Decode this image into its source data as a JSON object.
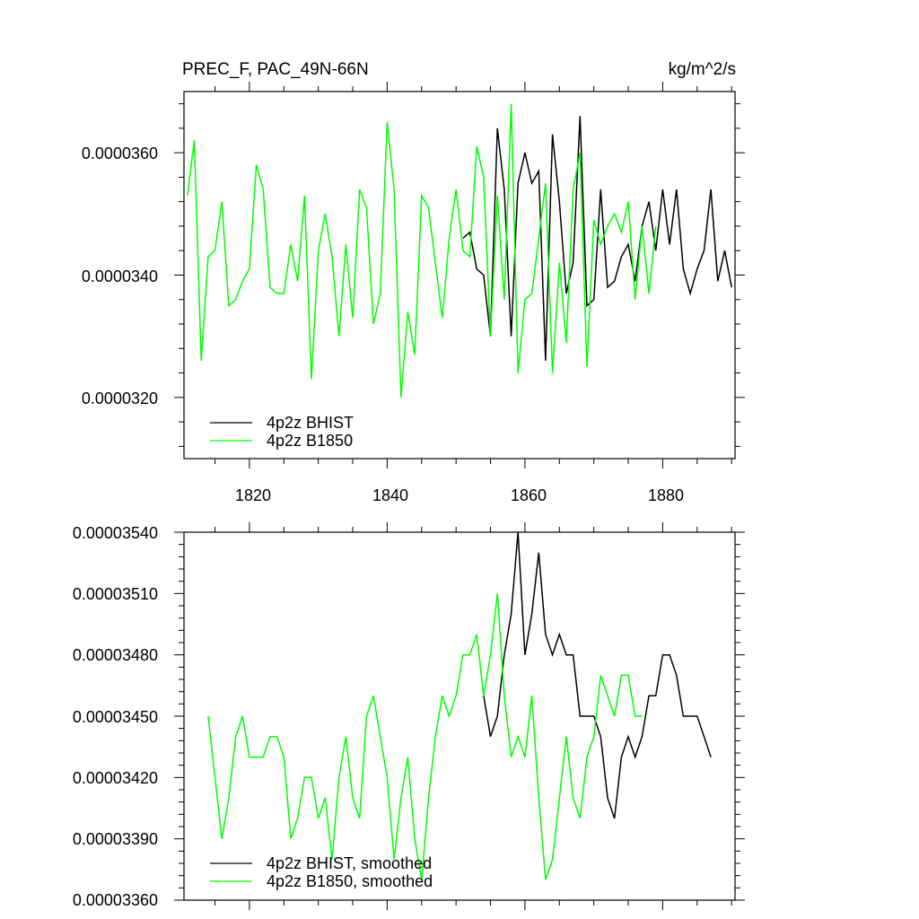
{
  "colors": {
    "bhist": "#000000",
    "b1850": "#00ff00"
  },
  "chart_data": [
    {
      "type": "line",
      "title": "PREC_F, PAC_49N-66N",
      "units": "kg/m^2/s",
      "xlim": [
        1810.5,
        1890.5
      ],
      "ylim": [
        3.1e-05,
        3.7e-05
      ],
      "xticks": [
        1820,
        1840,
        1860,
        1880
      ],
      "xtick_labels": [
        "1820",
        "1840",
        "1860",
        "1880"
      ],
      "yticks": [
        3.2e-05,
        3.4e-05,
        3.6e-05
      ],
      "ytick_labels": [
        "0.0000320",
        "0.0000340",
        "0.0000360"
      ],
      "legend_position": "bottom-left",
      "series": [
        {
          "name": "4p2z BHIST",
          "color_key": "bhist",
          "x": [
            1851,
            1852,
            1853,
            1854,
            1855,
            1856,
            1857,
            1858,
            1859,
            1860,
            1861,
            1862,
            1863,
            1864,
            1865,
            1866,
            1867,
            1868,
            1869,
            1870,
            1871,
            1872,
            1873,
            1874,
            1875,
            1876,
            1877,
            1878,
            1879,
            1880,
            1881,
            1882,
            1883,
            1884,
            1885,
            1886,
            1887,
            1888,
            1889,
            1890
          ],
          "y": [
            3.46e-05,
            3.47e-05,
            3.41e-05,
            3.4e-05,
            3.3e-05,
            3.64e-05,
            3.54e-05,
            3.3e-05,
            3.55e-05,
            3.6e-05,
            3.55e-05,
            3.57e-05,
            3.26e-05,
            3.63e-05,
            3.52e-05,
            3.37e-05,
            3.42e-05,
            3.66e-05,
            3.35e-05,
            3.36e-05,
            3.54e-05,
            3.38e-05,
            3.39e-05,
            3.43e-05,
            3.45e-05,
            3.39e-05,
            3.48e-05,
            3.52e-05,
            3.44e-05,
            3.54e-05,
            3.45e-05,
            3.54e-05,
            3.41e-05,
            3.37e-05,
            3.41e-05,
            3.44e-05,
            3.54e-05,
            3.39e-05,
            3.44e-05,
            3.38e-05
          ]
        },
        {
          "name": "4p2z B1850",
          "color_key": "b1850",
          "x": [
            1811,
            1812,
            1813,
            1814,
            1815,
            1816,
            1817,
            1818,
            1819,
            1820,
            1821,
            1822,
            1823,
            1824,
            1825,
            1826,
            1827,
            1828,
            1829,
            1830,
            1831,
            1832,
            1833,
            1834,
            1835,
            1836,
            1837,
            1838,
            1839,
            1840,
            1841,
            1842,
            1843,
            1844,
            1845,
            1846,
            1847,
            1848,
            1849,
            1850,
            1851,
            1852,
            1853,
            1854,
            1855,
            1856,
            1857,
            1858,
            1859,
            1860,
            1861,
            1862,
            1863,
            1864,
            1865,
            1866,
            1867,
            1868,
            1869,
            1870,
            1871,
            1872,
            1873,
            1874,
            1875,
            1876,
            1877,
            1878,
            1879
          ],
          "y": [
            3.53e-05,
            3.62e-05,
            3.26e-05,
            3.43e-05,
            3.44e-05,
            3.52e-05,
            3.35e-05,
            3.36e-05,
            3.39e-05,
            3.41e-05,
            3.58e-05,
            3.54e-05,
            3.38e-05,
            3.37e-05,
            3.37e-05,
            3.45e-05,
            3.39e-05,
            3.53e-05,
            3.23e-05,
            3.44e-05,
            3.5e-05,
            3.43e-05,
            3.3e-05,
            3.45e-05,
            3.33e-05,
            3.54e-05,
            3.51e-05,
            3.32e-05,
            3.37e-05,
            3.65e-05,
            3.54e-05,
            3.2e-05,
            3.34e-05,
            3.27e-05,
            3.53e-05,
            3.51e-05,
            3.42e-05,
            3.33e-05,
            3.46e-05,
            3.54e-05,
            3.44e-05,
            3.43e-05,
            3.61e-05,
            3.56e-05,
            3.3e-05,
            3.53e-05,
            3.36e-05,
            3.68e-05,
            3.24e-05,
            3.36e-05,
            3.37e-05,
            3.46e-05,
            3.55e-05,
            3.24e-05,
            3.42e-05,
            3.29e-05,
            3.54e-05,
            3.6e-05,
            3.25e-05,
            3.49e-05,
            3.45e-05,
            3.48e-05,
            3.5e-05,
            3.47e-05,
            3.52e-05,
            3.36e-05,
            3.48e-05,
            3.37e-05,
            3.48e-05
          ]
        }
      ]
    },
    {
      "type": "line",
      "title": "",
      "xlim": [
        1810.5,
        1890.5
      ],
      "ylim": [
        3.36e-05,
        3.54e-05
      ],
      "xticks": [
        1820,
        1840,
        1860,
        1880
      ],
      "xtick_labels": [],
      "yticks": [
        3.36e-05,
        3.39e-05,
        3.42e-05,
        3.45e-05,
        3.48e-05,
        3.51e-05,
        3.54e-05
      ],
      "ytick_labels": [
        "0.00003360",
        "0.00003390",
        "0.00003420",
        "0.00003450",
        "0.00003480",
        "0.00003510",
        "0.00003540"
      ],
      "legend_position": "bottom-left",
      "series": [
        {
          "name": "4p2z BHIST, smoothed",
          "color_key": "bhist",
          "x": [
            1854,
            1855,
            1856,
            1857,
            1858,
            1859,
            1860,
            1861,
            1862,
            1863,
            1864,
            1865,
            1866,
            1867,
            1868,
            1869,
            1870,
            1871,
            1872,
            1873,
            1874,
            1875,
            1876,
            1877,
            1878,
            1879,
            1880,
            1881,
            1882,
            1883,
            1884,
            1885,
            1886,
            1887
          ],
          "y": [
            3.46e-05,
            3.44e-05,
            3.45e-05,
            3.48e-05,
            3.5e-05,
            3.54e-05,
            3.48e-05,
            3.5e-05,
            3.53e-05,
            3.49e-05,
            3.48e-05,
            3.49e-05,
            3.48e-05,
            3.48e-05,
            3.45e-05,
            3.45e-05,
            3.45e-05,
            3.44e-05,
            3.41e-05,
            3.4e-05,
            3.43e-05,
            3.44e-05,
            3.43e-05,
            3.44e-05,
            3.46e-05,
            3.46e-05,
            3.48e-05,
            3.48e-05,
            3.47e-05,
            3.45e-05,
            3.45e-05,
            3.45e-05,
            3.44e-05,
            3.43e-05
          ]
        },
        {
          "name": "4p2z B1850, smoothed",
          "color_key": "b1850",
          "x": [
            1814,
            1815,
            1816,
            1817,
            1818,
            1819,
            1820,
            1821,
            1822,
            1823,
            1824,
            1825,
            1826,
            1827,
            1828,
            1829,
            1830,
            1831,
            1832,
            1833,
            1834,
            1835,
            1836,
            1837,
            1838,
            1839,
            1840,
            1841,
            1842,
            1843,
            1844,
            1845,
            1846,
            1847,
            1848,
            1849,
            1850,
            1851,
            1852,
            1853,
            1854,
            1855,
            1856,
            1857,
            1858,
            1859,
            1860,
            1861,
            1862,
            1863,
            1864,
            1865,
            1866,
            1867,
            1868,
            1869,
            1870,
            1871,
            1872,
            1873,
            1874,
            1875,
            1876,
            1877
          ],
          "y": [
            3.45e-05,
            3.42e-05,
            3.39e-05,
            3.41e-05,
            3.44e-05,
            3.45e-05,
            3.43e-05,
            3.43e-05,
            3.43e-05,
            3.44e-05,
            3.44e-05,
            3.43e-05,
            3.39e-05,
            3.4e-05,
            3.42e-05,
            3.42e-05,
            3.4e-05,
            3.41e-05,
            3.38e-05,
            3.42e-05,
            3.44e-05,
            3.41e-05,
            3.4e-05,
            3.45e-05,
            3.46e-05,
            3.44e-05,
            3.42e-05,
            3.38e-05,
            3.41e-05,
            3.43e-05,
            3.39e-05,
            3.37e-05,
            3.41e-05,
            3.44e-05,
            3.46e-05,
            3.45e-05,
            3.46e-05,
            3.48e-05,
            3.48e-05,
            3.49e-05,
            3.46e-05,
            3.48e-05,
            3.51e-05,
            3.46e-05,
            3.43e-05,
            3.44e-05,
            3.43e-05,
            3.46e-05,
            3.41e-05,
            3.37e-05,
            3.38e-05,
            3.41e-05,
            3.44e-05,
            3.41e-05,
            3.4e-05,
            3.43e-05,
            3.44e-05,
            3.47e-05,
            3.46e-05,
            3.45e-05,
            3.47e-05,
            3.47e-05,
            3.45e-05,
            3.45e-05
          ]
        }
      ]
    }
  ]
}
